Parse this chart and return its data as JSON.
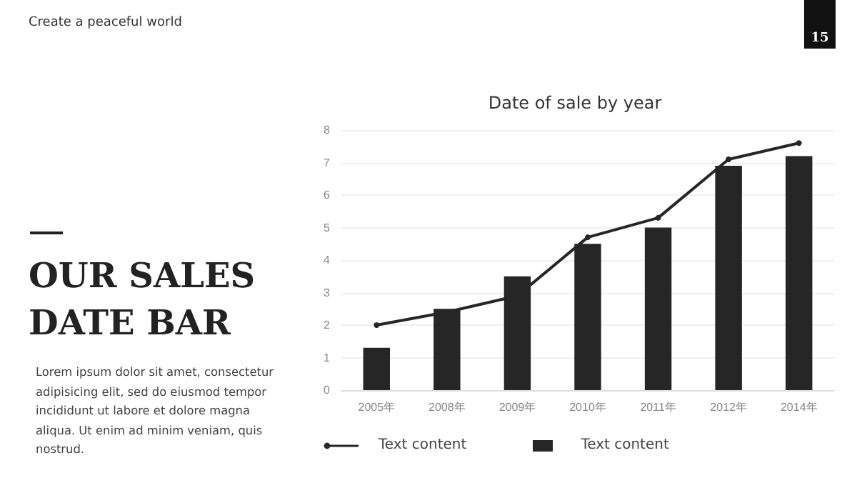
{
  "chart_data": {
    "type": "bar",
    "title": "Date of sale by year",
    "categories": [
      "2005年",
      "2008年",
      "2009年",
      "2010年",
      "2011年",
      "2012年",
      "2014年"
    ],
    "series": [
      {
        "name": "Text content",
        "type": "line",
        "color": "#262626",
        "values": [
          2.0,
          2.4,
          2.9,
          4.7,
          5.3,
          7.1,
          7.6
        ]
      },
      {
        "name": "Text content",
        "color": "#262626",
        "values": [
          1.3,
          2.5,
          3.5,
          4.5,
          5.0,
          6.9,
          7.2
        ]
      }
    ],
    "ylim": [
      0,
      8
    ],
    "yticks": [
      0,
      1,
      2,
      3,
      4,
      5,
      6,
      7,
      8
    ],
    "grid": "y",
    "legend": "bottom left",
    "marker": "circle",
    "line_style": "solid",
    "annotations": [
      "Create a peaceful world",
      "15",
      "OUR SALES DATE BAR",
      "Lorem ipsum dolor sit amet, consectetur adipisicing elit, sed do eiusmod tempor incididunt ut labore et dolore magna aliqua. Ut enim ad minim veniam, quis nostrud."
    ]
  }
}
